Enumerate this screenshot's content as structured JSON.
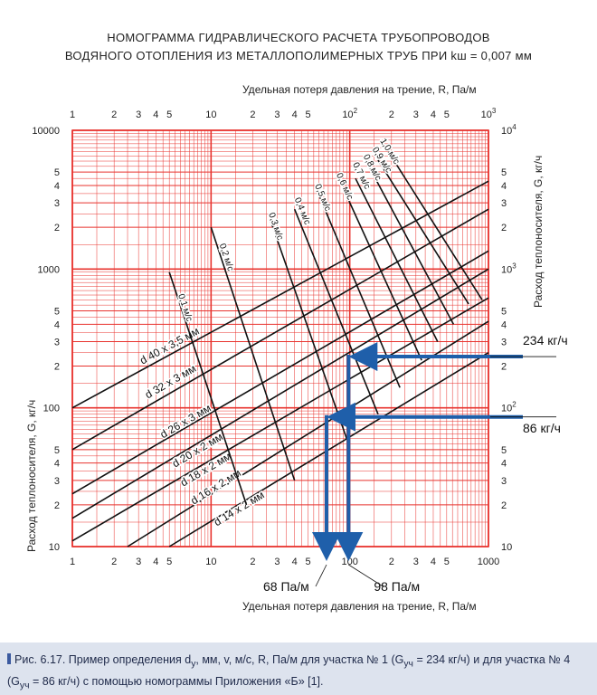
{
  "header": {
    "title_line1": "НОМОГРАММА ГИДРАВЛИЧЕСКОГО РАСЧЕТА ТРУБОПРОВОДОВ",
    "title_line2": "ВОДЯНОГО ОТОПЛЕНИЯ ИЗ МЕТАЛЛОПОЛИМЕРНЫХ ТРУБ ПРИ kш = 0,007 мм"
  },
  "chart_data": {
    "type": "nomogram",
    "x_scale": "log",
    "y_scale": "log",
    "xlim": [
      1,
      1000
    ],
    "ylim": [
      10,
      10000
    ],
    "xlabel": "Удельная потеря давления на трение, R, Па/м",
    "ylabel": "Расход теплоносителя, G, кг/ч",
    "x_ticks_bottom": [
      {
        "v": 1,
        "t": "1"
      },
      {
        "v": 2,
        "t": "2"
      },
      {
        "v": 3,
        "t": "3"
      },
      {
        "v": 4,
        "t": "4"
      },
      {
        "v": 5,
        "t": "5"
      },
      {
        "v": 10,
        "t": "10"
      },
      {
        "v": 20,
        "t": "2"
      },
      {
        "v": 30,
        "t": "3"
      },
      {
        "v": 40,
        "t": "4"
      },
      {
        "v": 50,
        "t": "5"
      },
      {
        "v": 100,
        "t": "100"
      },
      {
        "v": 200,
        "t": "2"
      },
      {
        "v": 300,
        "t": "3"
      },
      {
        "v": 400,
        "t": "4"
      },
      {
        "v": 500,
        "t": "5"
      },
      {
        "v": 1000,
        "t": "1000"
      }
    ],
    "x_ticks_top": [
      {
        "v": 1,
        "t": "1"
      },
      {
        "v": 2,
        "t": "2"
      },
      {
        "v": 3,
        "t": "3"
      },
      {
        "v": 4,
        "t": "4"
      },
      {
        "v": 5,
        "t": "5"
      },
      {
        "v": 10,
        "t": "10"
      },
      {
        "v": 20,
        "t": "2"
      },
      {
        "v": 30,
        "t": "3"
      },
      {
        "v": 40,
        "t": "4"
      },
      {
        "v": 50,
        "t": "5"
      },
      {
        "v": 100,
        "t": "10",
        "sup": "2"
      },
      {
        "v": 200,
        "t": "2"
      },
      {
        "v": 300,
        "t": "3"
      },
      {
        "v": 400,
        "t": "4"
      },
      {
        "v": 500,
        "t": "5"
      },
      {
        "v": 1000,
        "t": "10",
        "sup": "3"
      }
    ],
    "y_ticks_left": [
      {
        "v": 10,
        "t": "10"
      },
      {
        "v": 20,
        "t": "2"
      },
      {
        "v": 30,
        "t": "3"
      },
      {
        "v": 40,
        "t": "4"
      },
      {
        "v": 50,
        "t": "5"
      },
      {
        "v": 100,
        "t": "100"
      },
      {
        "v": 200,
        "t": "2"
      },
      {
        "v": 300,
        "t": "3"
      },
      {
        "v": 400,
        "t": "4"
      },
      {
        "v": 500,
        "t": "5"
      },
      {
        "v": 1000,
        "t": "1000"
      },
      {
        "v": 2000,
        "t": "2"
      },
      {
        "v": 3000,
        "t": "3"
      },
      {
        "v": 4000,
        "t": "4"
      },
      {
        "v": 5000,
        "t": "5"
      },
      {
        "v": 10000,
        "t": "10000"
      }
    ],
    "y_ticks_right": [
      {
        "v": 10,
        "t": "10"
      },
      {
        "v": 20,
        "t": "2"
      },
      {
        "v": 30,
        "t": "3"
      },
      {
        "v": 40,
        "t": "4"
      },
      {
        "v": 50,
        "t": "5"
      },
      {
        "v": 100,
        "t": "10",
        "sup": "2"
      },
      {
        "v": 200,
        "t": "2"
      },
      {
        "v": 300,
        "t": "3"
      },
      {
        "v": 400,
        "t": "4"
      },
      {
        "v": 500,
        "t": "5"
      },
      {
        "v": 1000,
        "t": "10",
        "sup": "3"
      },
      {
        "v": 2000,
        "t": "2"
      },
      {
        "v": 3000,
        "t": "3"
      },
      {
        "v": 4000,
        "t": "4"
      },
      {
        "v": 5000,
        "t": "5"
      },
      {
        "v": 10000,
        "t": "10",
        "sup": "4"
      }
    ],
    "pipe_lines": [
      {
        "label": "d 40 x 3,5 мм",
        "x0": 1,
        "y0": 100,
        "x1": 1000,
        "y1": 4300,
        "lx": 3.2,
        "ly": 205
      },
      {
        "label": "d 32 x 3 мм",
        "x0": 1,
        "y0": 50,
        "x1": 1000,
        "y1": 2700,
        "lx": 3.5,
        "ly": 116
      },
      {
        "label": "d 26 x 3 мм",
        "x0": 1,
        "y0": 24,
        "x1": 1000,
        "y1": 1350,
        "lx": 4.5,
        "ly": 60
      },
      {
        "label": "d 20 x 2 мм",
        "x0": 1,
        "y0": 16,
        "x1": 1000,
        "y1": 1000,
        "lx": 5.5,
        "ly": 37
      },
      {
        "label": "d 18 x 2 мм",
        "x0": 1,
        "y0": 11,
        "x1": 1000,
        "y1": 620,
        "lx": 6.3,
        "ly": 27
      },
      {
        "label": "d 16 x 2 мм",
        "x0": 2.5,
        "y0": 10,
        "x1": 1000,
        "y1": 420,
        "lx": 7.5,
        "ly": 20
      },
      {
        "label": "d 14 x 2 мм",
        "x0": 5,
        "y0": 10,
        "x1": 1000,
        "y1": 250,
        "lx": 11,
        "ly": 14
      }
    ],
    "velocity_lines": [
      {
        "label": "0,1 м/с",
        "x0": 5.0,
        "y0": 950,
        "x1": 18,
        "y1": 20,
        "lx": 5.8,
        "ly": 650
      },
      {
        "label": "0,2 м/с",
        "x0": 10,
        "y0": 2000,
        "x1": 40,
        "y1": 30,
        "lx": 11.5,
        "ly": 1500
      },
      {
        "label": "0,3 м/с",
        "x0": 27,
        "y0": 2200,
        "x1": 95,
        "y1": 60,
        "lx": 26,
        "ly": 2500
      },
      {
        "label": "0,4 м/с",
        "x0": 40,
        "y0": 2700,
        "x1": 160,
        "y1": 90,
        "lx": 40,
        "ly": 3200
      },
      {
        "label": "0,5 м/с",
        "x0": 60,
        "y0": 3400,
        "x1": 230,
        "y1": 140,
        "lx": 56,
        "ly": 4000
      },
      {
        "label": "0,6 м/с",
        "x0": 90,
        "y0": 3800,
        "x1": 330,
        "y1": 220,
        "lx": 80,
        "ly": 4800
      },
      {
        "label": "0,7 м/с",
        "x0": 110,
        "y0": 4500,
        "x1": 430,
        "y1": 300,
        "lx": 105,
        "ly": 5700
      },
      {
        "label": "0,8 м/с",
        "x0": 140,
        "y0": 5300,
        "x1": 560,
        "y1": 400,
        "lx": 125,
        "ly": 6500
      },
      {
        "label": "0,9 м/с",
        "x0": 160,
        "y0": 6100,
        "x1": 720,
        "y1": 560,
        "lx": 145,
        "ly": 7300
      },
      {
        "label": "1,0 м/с",
        "x0": 190,
        "y0": 7000,
        "x1": 900,
        "y1": 600,
        "lx": 165,
        "ly": 8400
      }
    ],
    "example_paths": [
      {
        "G": 234,
        "R": 98,
        "G_label": "234 кг/ч",
        "R_label": "98 Па/м",
        "color": "#1f5faa"
      },
      {
        "G": 86,
        "R": 68,
        "G_label": "86 кг/ч",
        "R_label": "68 Па/м",
        "color": "#1f5faa"
      }
    ],
    "grid_color": "#e8332e",
    "line_color": "#111111"
  },
  "caption": {
    "part1": "Рис. 6.17. Пример определения d",
    "sub1": "у",
    "part2": ", мм, v, м/с, R, Па/м для участка № 1 (G",
    "sub2": "уч",
    "part3": " = 234 кг/ч) и для участка № 4 (G",
    "sub3": "уч",
    "part4": " = 86 кг/ч) с помощью номограммы Приложения «Б» [1]."
  }
}
